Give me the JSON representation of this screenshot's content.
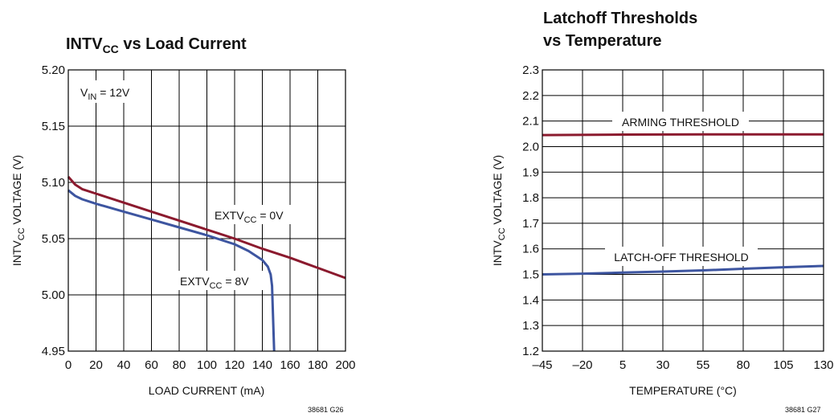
{
  "colors": {
    "red_series": "#8b1a2e",
    "blue_series": "#3d55a0",
    "grid": "#000000"
  },
  "chart_data": [
    {
      "type": "line",
      "title": {
        "main": "INTV",
        "sub": "CC",
        "rest": " vs Load Current"
      },
      "xlabel": "LOAD CURRENT (mA)",
      "ylabel": {
        "main": "INTV",
        "sub": "CC",
        "rest": " VOLTAGE (V)"
      },
      "xlim": [
        0,
        200
      ],
      "ylim": [
        4.95,
        5.2
      ],
      "x_ticks": [
        "0",
        "20",
        "40",
        "60",
        "80",
        "100",
        "120",
        "140",
        "160",
        "180",
        "200"
      ],
      "y_ticks": [
        "4.95",
        "5.00",
        "5.05",
        "5.10",
        "5.15",
        "5.20"
      ],
      "grid": true,
      "annotation": {
        "main": "V",
        "sub": "IN",
        "rest": " = 12V"
      },
      "figure_id": "38681 G26",
      "series": [
        {
          "name": {
            "main": "EXTV",
            "sub": "CC",
            "rest": " = 0V"
          },
          "color": "#8b1a2e",
          "x": [
            0,
            5,
            10,
            20,
            40,
            60,
            80,
            100,
            120,
            140,
            160,
            180,
            200
          ],
          "y": [
            5.105,
            5.098,
            5.094,
            5.09,
            5.082,
            5.074,
            5.066,
            5.058,
            5.05,
            5.041,
            5.033,
            5.024,
            5.015
          ]
        },
        {
          "name": {
            "main": "EXTV",
            "sub": "CC",
            "rest": " = 8V"
          },
          "color": "#3d55a0",
          "x": [
            0,
            5,
            10,
            20,
            40,
            60,
            80,
            100,
            120,
            130,
            140,
            144,
            146,
            147,
            147.5,
            148,
            148.5
          ],
          "y": [
            5.093,
            5.088,
            5.085,
            5.081,
            5.074,
            5.067,
            5.06,
            5.053,
            5.045,
            5.039,
            5.031,
            5.025,
            5.018,
            5.008,
            4.99,
            4.97,
            4.95
          ]
        }
      ]
    },
    {
      "type": "line",
      "title": [
        "Latchoff Thresholds",
        "vs Temperature"
      ],
      "xlabel": "TEMPERATURE (°C)",
      "ylabel": {
        "main": "INTV",
        "sub": "CC",
        "rest": " VOLTAGE (V)"
      },
      "xlim": [
        -45,
        130
      ],
      "ylim": [
        1.2,
        2.3
      ],
      "x_ticks": [
        "–45",
        "–20",
        "5",
        "30",
        "55",
        "80",
        "105",
        "130"
      ],
      "y_ticks": [
        "1.2",
        "1.3",
        "1.4",
        "1.5",
        "1.6",
        "1.7",
        "1.8",
        "1.9",
        "2.0",
        "2.1",
        "2.2",
        "2.3"
      ],
      "grid": true,
      "figure_id": "38681 G27",
      "series": [
        {
          "name": "ARMING THRESHOLD",
          "color": "#8b1a2e",
          "x": [
            -45,
            5,
            55,
            105,
            130
          ],
          "y": [
            2.045,
            2.047,
            2.048,
            2.048,
            2.048
          ]
        },
        {
          "name": "LATCH-OFF THRESHOLD",
          "color": "#3d55a0",
          "x": [
            -45,
            -20,
            5,
            30,
            55,
            80,
            105,
            130
          ],
          "y": [
            1.5,
            1.503,
            1.507,
            1.511,
            1.516,
            1.522,
            1.528,
            1.533
          ]
        }
      ]
    }
  ]
}
